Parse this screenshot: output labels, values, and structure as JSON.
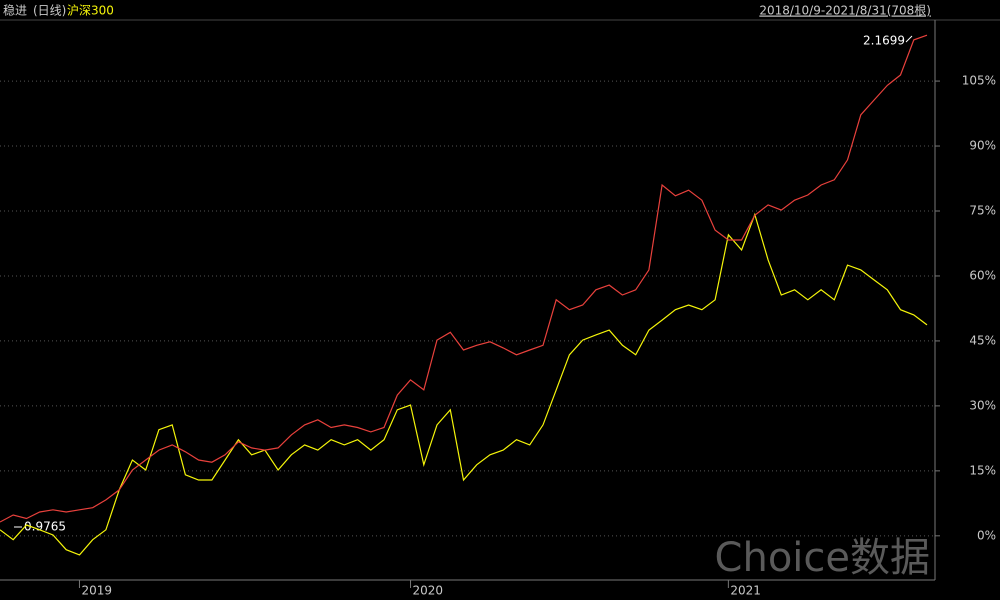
{
  "chart_data": {
    "type": "line",
    "period": "(日线)",
    "range": "2018/10/9-2021/8/31(708根)",
    "annotations": [
      "2.1699",
      "0.9765"
    ],
    "watermark": "Choice数据",
    "categories": [
      null,
      null,
      null,
      null,
      null,
      null,
      "2019",
      null,
      null,
      null,
      null,
      null,
      null,
      null,
      null,
      null,
      null,
      null,
      null,
      null,
      null,
      null,
      null,
      null,
      null,
      null,
      null,
      null,
      null,
      null,
      null,
      "2020",
      null,
      null,
      null,
      null,
      null,
      null,
      null,
      null,
      null,
      null,
      null,
      null,
      null,
      null,
      null,
      null,
      null,
      null,
      null,
      null,
      null,
      null,
      null,
      "2021",
      null,
      null,
      null,
      null,
      null,
      null,
      null,
      null,
      null,
      null,
      null,
      null,
      null,
      null,
      null
    ],
    "series": [
      {
        "name": "稳进",
        "color": "#e8413c",
        "values": [
          3.2,
          4.8,
          4,
          5.5,
          6,
          5.5,
          6,
          6.5,
          8.3,
          10.6,
          15.2,
          17.5,
          19.8,
          21,
          19.4,
          17.5,
          17,
          18.7,
          21.7,
          20.3,
          19.8,
          20.3,
          23.3,
          25.6,
          26.8,
          25,
          25.6,
          25,
          24,
          25,
          32.5,
          36,
          33.7,
          45.2,
          47,
          42.9,
          44,
          44.8,
          43.4,
          41.8,
          42.9,
          44,
          54.5,
          52.2,
          53.3,
          56.8,
          57.9,
          55.6,
          56.8,
          61.4,
          81,
          78.5,
          79.8,
          77.5,
          70.6,
          68.3,
          68.3,
          74,
          76.4,
          75.2,
          77.5,
          78.7,
          81,
          82.2,
          86.8,
          97.2,
          100.6,
          104,
          106.4,
          114.5,
          115.6
        ]
      },
      {
        "name": "沪深300",
        "color": "#f5f50a",
        "values": [
          1.4,
          -0.9,
          2.5,
          1.4,
          0.2,
          -3.2,
          -4.4,
          -0.9,
          1.4,
          10.6,
          17.5,
          15.2,
          24.5,
          25.6,
          14.1,
          12.9,
          12.9,
          17.5,
          22.2,
          18.7,
          19.8,
          15.2,
          18.7,
          21,
          19.8,
          22.2,
          21,
          22.2,
          19.8,
          22.2,
          29.1,
          30.2,
          16.4,
          25.6,
          29.1,
          12.9,
          16.4,
          18.7,
          19.8,
          22.2,
          21,
          25.6,
          33.7,
          41.8,
          45.2,
          46.4,
          47.5,
          44,
          41.8,
          47.5,
          49.8,
          52.2,
          53.3,
          52.2,
          54.5,
          69.5,
          66,
          74.2,
          63.7,
          55.6,
          56.8,
          54.5,
          56.8,
          54.5,
          62.5,
          61.4,
          59.1,
          56.8,
          52.2,
          51,
          48.7
        ]
      }
    ],
    "ylim": [
      -10.2,
      119.1
    ],
    "yticks": [
      {
        "value": 0,
        "label": "0%"
      },
      {
        "value": 15,
        "label": "15%"
      },
      {
        "value": 30,
        "label": "30%"
      },
      {
        "value": 45,
        "label": "45%"
      },
      {
        "value": 60,
        "label": "60%"
      },
      {
        "value": 75,
        "label": "75%"
      },
      {
        "value": 90,
        "label": "90%"
      },
      {
        "value": 105,
        "label": "105%"
      }
    ],
    "grid": true
  }
}
